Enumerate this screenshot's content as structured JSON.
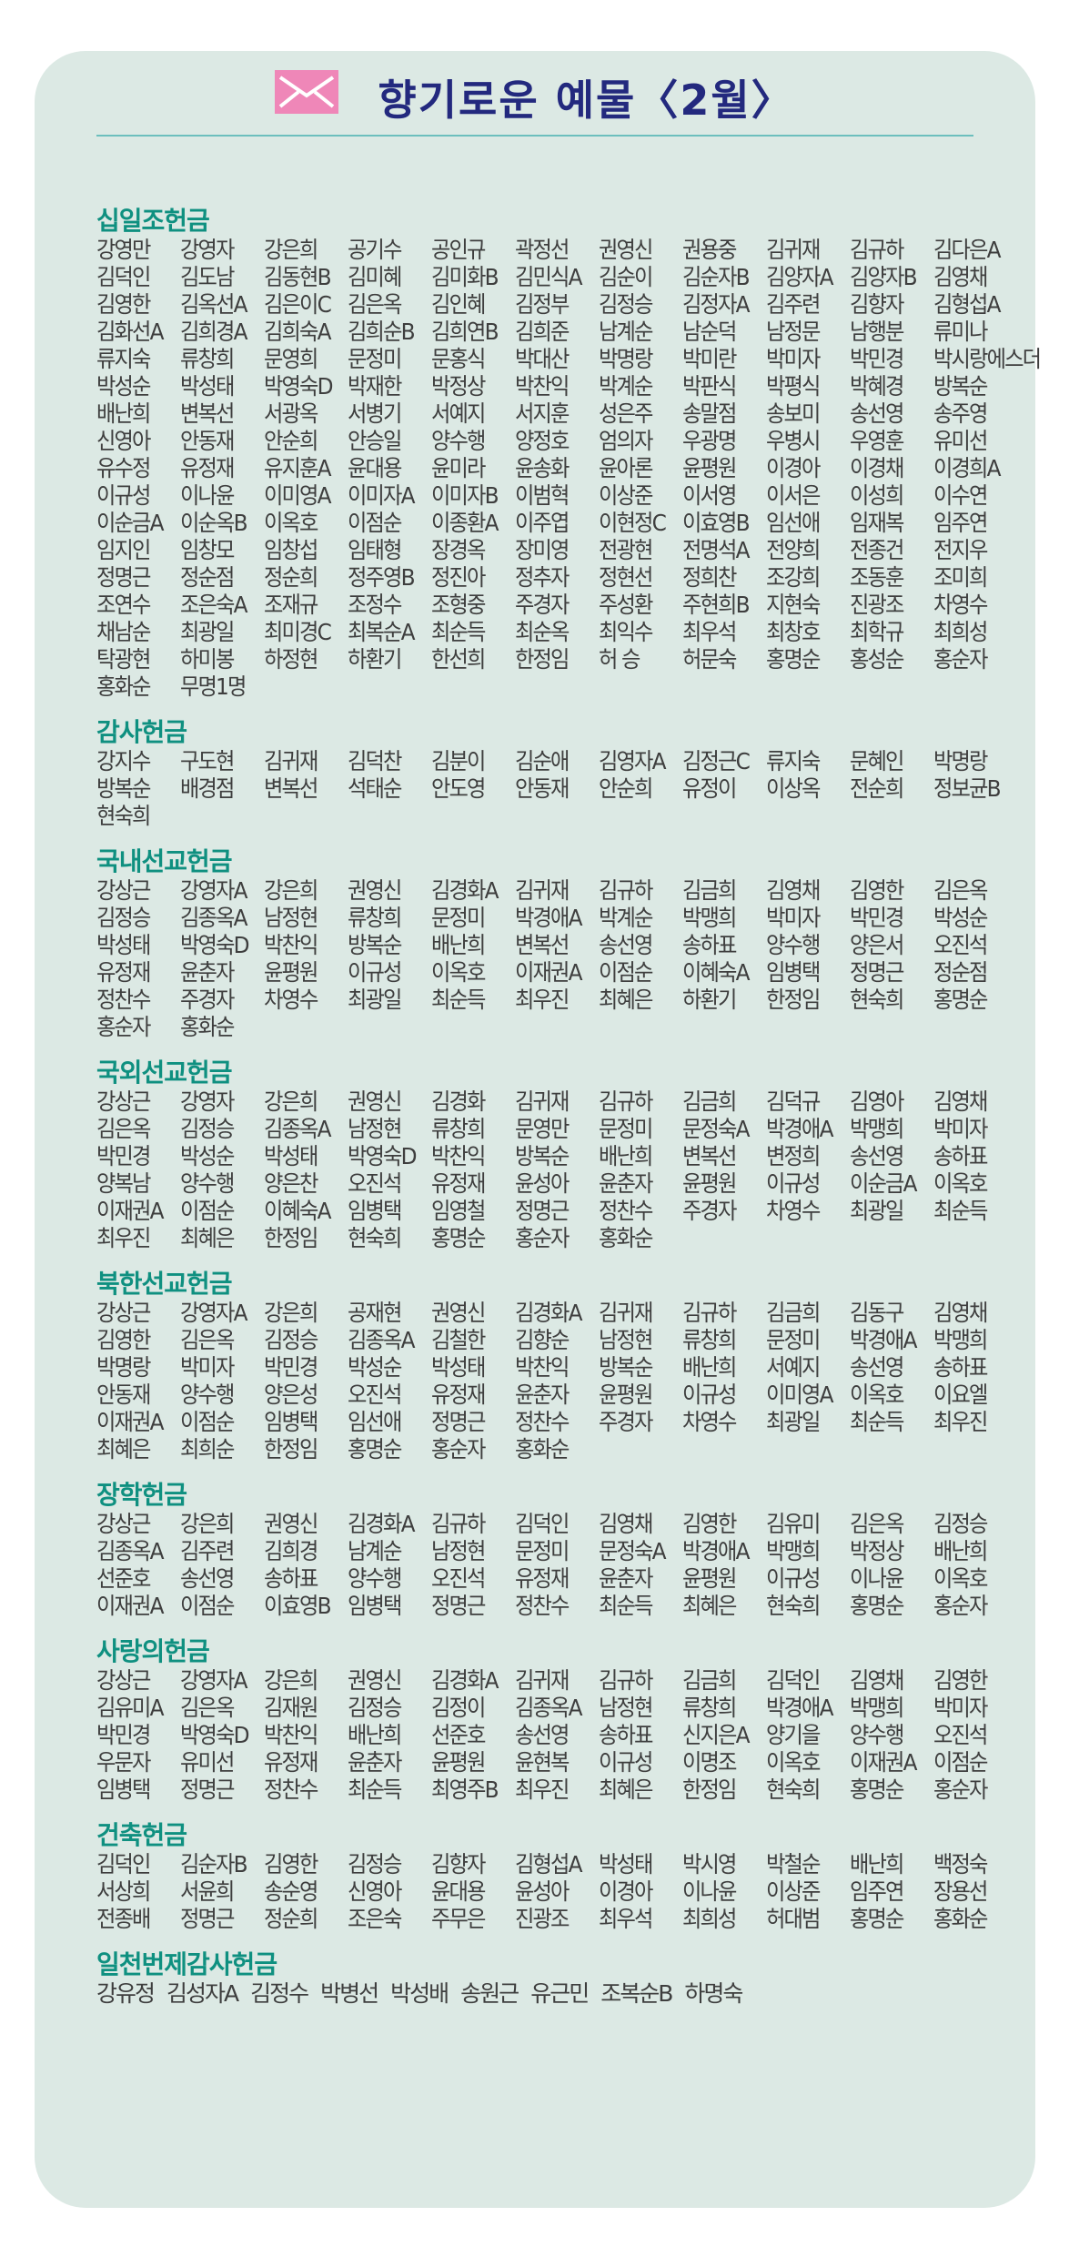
{
  "title": "향기로운 예물〈2월〉",
  "icon": "envelope-icon",
  "colors": {
    "background": "#dce9e4",
    "title": "#23297e",
    "section": "#0f9080",
    "envelope": "#ef87b8",
    "rule": "#6cbfbd"
  },
  "sections": [
    {
      "title": "십일조헌금",
      "names": [
        "강영만",
        "강영자",
        "강은희",
        "공기수",
        "공인규",
        "곽정선",
        "권영신",
        "권용중",
        "김귀재",
        "김규하",
        "김다은A",
        "김덕인",
        "김도남",
        "김동현B",
        "김미혜",
        "김미화B",
        "김민식A",
        "김순이",
        "김순자B",
        "김양자A",
        "김양자B",
        "김영채",
        "김영한",
        "김옥선A",
        "김은이C",
        "김은옥",
        "김인혜",
        "김정부",
        "김정승",
        "김정자A",
        "김주련",
        "김향자",
        "김형섭A",
        "김화선A",
        "김희경A",
        "김희숙A",
        "김희순B",
        "김희연B",
        "김희준",
        "남계순",
        "남순덕",
        "남정문",
        "남행분",
        "류미나",
        "류지숙",
        "류창희",
        "문영희",
        "문정미",
        "문홍식",
        "박대산",
        "박명랑",
        "박미란",
        "박미자",
        "박민경",
        "박시랑에스더",
        "박성순",
        "박성태",
        "박영숙D",
        "박재한",
        "박정상",
        "박찬익",
        "박계순",
        "박판식",
        "박평식",
        "박혜경",
        "방복순",
        "배난희",
        "변복선",
        "서광옥",
        "서병기",
        "서예지",
        "서지훈",
        "성은주",
        "송말점",
        "송보미",
        "송선영",
        "송주영",
        "신영아",
        "안동재",
        "안순희",
        "안승일",
        "양수행",
        "양정호",
        "엄의자",
        "우광명",
        "우병시",
        "우영훈",
        "유미선",
        "유수정",
        "유정재",
        "유지훈A",
        "윤대용",
        "윤미라",
        "윤송화",
        "윤아론",
        "윤평원",
        "이경아",
        "이경채",
        "이경희A",
        "이규성",
        "이나윤",
        "이미영A",
        "이미자A",
        "이미자B",
        "이범혁",
        "이상준",
        "이서영",
        "이서은",
        "이성희",
        "이수연",
        "이순금A",
        "이순옥B",
        "이옥호",
        "이점순",
        "이종환A",
        "이주엽",
        "이현정C",
        "이효영B",
        "임선애",
        "임재복",
        "임주연",
        "임지인",
        "임창모",
        "임창섭",
        "임태형",
        "장경옥",
        "장미영",
        "전광현",
        "전명석A",
        "전양희",
        "전종건",
        "전지우",
        "정명근",
        "정순점",
        "정순희",
        "정주영B",
        "정진아",
        "정추자",
        "정현선",
        "정희찬",
        "조강희",
        "조동훈",
        "조미희",
        "조연수",
        "조은숙A",
        "조재규",
        "조정수",
        "조형중",
        "주경자",
        "주성환",
        "주현희B",
        "지현숙",
        "진광조",
        "차영수",
        "채남순",
        "최광일",
        "최미경C",
        "최복순A",
        "최순득",
        "최순옥",
        "최익수",
        "최우석",
        "최창호",
        "최학규",
        "최희성",
        "탁광현",
        "하미봉",
        "하정현",
        "하환기",
        "한선희",
        "한정임",
        "허 승",
        "허문숙",
        "홍명순",
        "홍성순",
        "홍순자",
        "홍화순",
        "무명1명"
      ]
    },
    {
      "title": "감사헌금",
      "names": [
        "강지수",
        "구도현",
        "김귀재",
        "김덕찬",
        "김분이",
        "김순애",
        "김영자A",
        "김정근C",
        "류지숙",
        "문혜인",
        "박명랑",
        "방복순",
        "배경점",
        "변복선",
        "석태순",
        "안도영",
        "안동재",
        "안순희",
        "유정이",
        "이상옥",
        "전순희",
        "정보균B",
        "현숙희"
      ]
    },
    {
      "title": "국내선교헌금",
      "names": [
        "강상근",
        "강영자A",
        "강은희",
        "권영신",
        "김경화A",
        "김귀재",
        "김규하",
        "김금희",
        "김영채",
        "김영한",
        "김은옥",
        "김정승",
        "김종옥A",
        "남정현",
        "류창희",
        "문정미",
        "박경애A",
        "박계순",
        "박맹희",
        "박미자",
        "박민경",
        "박성순",
        "박성태",
        "박영숙D",
        "박찬익",
        "방복순",
        "배난희",
        "변복선",
        "송선영",
        "송하표",
        "양수행",
        "양은서",
        "오진석",
        "유정재",
        "윤춘자",
        "윤평원",
        "이규성",
        "이옥호",
        "이재권A",
        "이점순",
        "이혜숙A",
        "임병택",
        "정명근",
        "정순점",
        "정찬수",
        "주경자",
        "차영수",
        "최광일",
        "최순득",
        "최우진",
        "최혜은",
        "하환기",
        "한정임",
        "현숙희",
        "홍명순",
        "홍순자",
        "홍화순"
      ]
    },
    {
      "title": "국외선교헌금",
      "names": [
        "강상근",
        "강영자",
        "강은희",
        "권영신",
        "김경화",
        "김귀재",
        "김규하",
        "김금희",
        "김덕규",
        "김영아",
        "김영채",
        "김은옥",
        "김정승",
        "김종옥A",
        "남정현",
        "류창희",
        "문영만",
        "문정미",
        "문정숙A",
        "박경애A",
        "박맹희",
        "박미자",
        "박민경",
        "박성순",
        "박성태",
        "박영숙D",
        "박찬익",
        "방복순",
        "배난희",
        "변복선",
        "변정희",
        "송선영",
        "송하표",
        "양복남",
        "양수행",
        "양은찬",
        "오진석",
        "유정재",
        "윤성아",
        "윤춘자",
        "윤평원",
        "이규성",
        "이순금A",
        "이옥호",
        "이재권A",
        "이점순",
        "이혜숙A",
        "임병택",
        "임영철",
        "정명근",
        "정찬수",
        "주경자",
        "차영수",
        "최광일",
        "최순득",
        "최우진",
        "최혜은",
        "한정임",
        "현숙희",
        "홍명순",
        "홍순자",
        "홍화순"
      ]
    },
    {
      "title": "북한선교헌금",
      "names": [
        "강상근",
        "강영자A",
        "강은희",
        "공재현",
        "권영신",
        "김경화A",
        "김귀재",
        "김규하",
        "김금희",
        "김동구",
        "김영채",
        "김영한",
        "김은옥",
        "김정승",
        "김종옥A",
        "김철한",
        "김향순",
        "남정현",
        "류창희",
        "문정미",
        "박경애A",
        "박맹희",
        "박명랑",
        "박미자",
        "박민경",
        "박성순",
        "박성태",
        "박찬익",
        "방복순",
        "배난희",
        "서예지",
        "송선영",
        "송하표",
        "안동재",
        "양수행",
        "양은성",
        "오진석",
        "유정재",
        "윤춘자",
        "윤평원",
        "이규성",
        "이미영A",
        "이옥호",
        "이요엘",
        "이재권A",
        "이점순",
        "임병택",
        "임선애",
        "정명근",
        "정찬수",
        "주경자",
        "차영수",
        "최광일",
        "최순득",
        "최우진",
        "최혜은",
        "최희순",
        "한정임",
        "홍명순",
        "홍순자",
        "홍화순"
      ]
    },
    {
      "title": "장학헌금",
      "names": [
        "강상근",
        "강은희",
        "권영신",
        "김경화A",
        "김규하",
        "김덕인",
        "김영채",
        "김영한",
        "김유미",
        "김은옥",
        "김정승",
        "김종옥A",
        "김주련",
        "김희경",
        "남계순",
        "남정현",
        "문정미",
        "문정숙A",
        "박경애A",
        "박맹희",
        "박정상",
        "배난희",
        "선준호",
        "송선영",
        "송하표",
        "양수행",
        "오진석",
        "유정재",
        "윤춘자",
        "윤평원",
        "이규성",
        "이나윤",
        "이옥호",
        "이재권A",
        "이점순",
        "이효영B",
        "임병택",
        "정명근",
        "정찬수",
        "최순득",
        "최혜은",
        "현숙희",
        "홍명순",
        "홍순자"
      ]
    },
    {
      "title": "사랑의헌금",
      "names": [
        "강상근",
        "강영자A",
        "강은희",
        "권영신",
        "김경화A",
        "김귀재",
        "김규하",
        "김금희",
        "김덕인",
        "김영채",
        "김영한",
        "김유미A",
        "김은옥",
        "김재원",
        "김정승",
        "김정이",
        "김종옥A",
        "남정현",
        "류창희",
        "박경애A",
        "박맹희",
        "박미자",
        "박민경",
        "박영숙D",
        "박찬익",
        "배난희",
        "선준호",
        "송선영",
        "송하표",
        "신지은A",
        "양기을",
        "양수행",
        "오진석",
        "우문자",
        "유미선",
        "유정재",
        "윤춘자",
        "윤평원",
        "윤현복",
        "이규성",
        "이명조",
        "이옥호",
        "이재권A",
        "이점순",
        "임병택",
        "정명근",
        "정찬수",
        "최순득",
        "최영주B",
        "최우진",
        "최혜은",
        "한정임",
        "현숙희",
        "홍명순",
        "홍순자"
      ]
    },
    {
      "title": "건축헌금",
      "names": [
        "김덕인",
        "김순자B",
        "김영한",
        "김정승",
        "김향자",
        "김형섭A",
        "박성태",
        "박시영",
        "박철순",
        "배난희",
        "백정숙",
        "서상희",
        "서윤희",
        "송순영",
        "신영아",
        "윤대용",
        "윤성아",
        "이경아",
        "이나윤",
        "이상준",
        "임주연",
        "장용선",
        "전종배",
        "정명근",
        "정순희",
        "조은숙",
        "주무은",
        "진광조",
        "최우석",
        "최희성",
        "허대범",
        "홍명순",
        "홍화순"
      ]
    },
    {
      "title": "일천번제감사헌금",
      "names": [
        "강유정",
        "김성자A",
        "김정수",
        "박병선",
        "박성배",
        "송원근",
        "유근민",
        "조복순B",
        "하명숙"
      ]
    }
  ]
}
